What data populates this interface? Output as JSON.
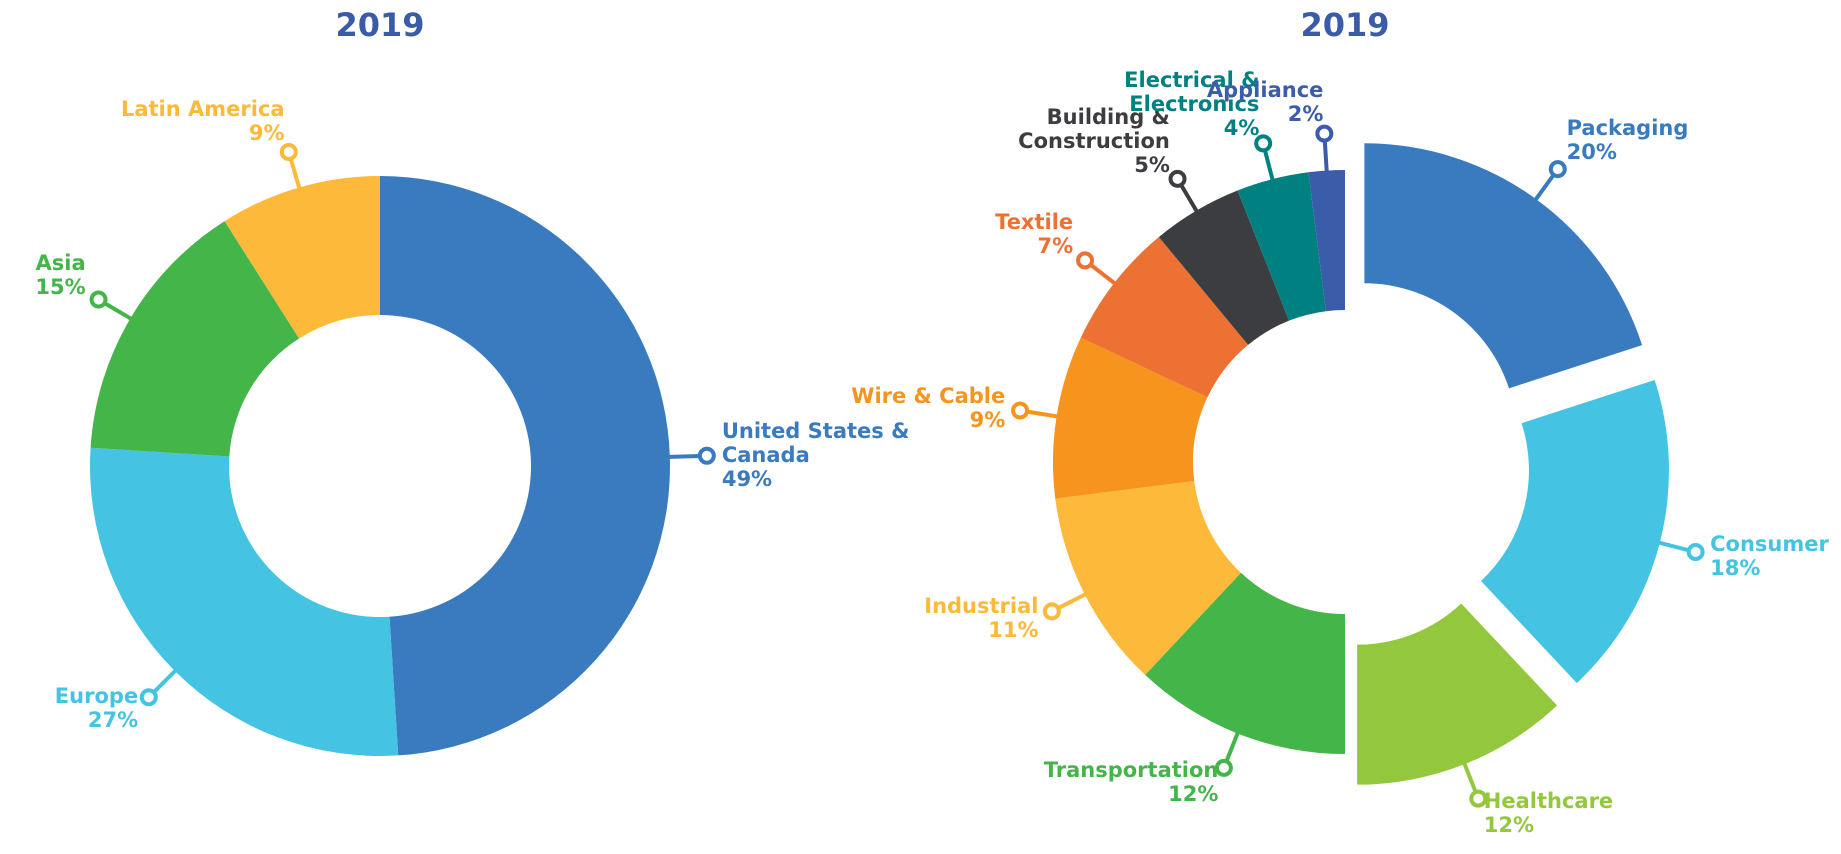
{
  "chart_data": [
    {
      "type": "donut",
      "title": "2019",
      "categories": [
        "United States &\nCanada",
        "Europe",
        "Asia",
        "Latin America"
      ],
      "values": [
        49,
        27,
        15,
        9
      ],
      "value_labels": [
        "49%",
        "27%",
        "15%",
        "9%"
      ],
      "colors": [
        "#3a7bbf",
        "#45c3e3",
        "#44b649",
        "#fdb93a"
      ],
      "exploded": [
        false,
        false,
        false,
        false
      ]
    },
    {
      "type": "donut",
      "title": "2019",
      "categories": [
        "Packaging",
        "Consumer",
        "Healthcare",
        "Transportation",
        "Industrial",
        "Wire & Cable",
        "Textile",
        "Building &\nConstruction",
        "Electrical &\nElectronics",
        "Appliance"
      ],
      "values": [
        20,
        18,
        12,
        12,
        11,
        9,
        7,
        5,
        4,
        2
      ],
      "value_labels": [
        "20%",
        "18%",
        "12%",
        "12%",
        "11%",
        "9%",
        "7%",
        "5%",
        "4%",
        "2%"
      ],
      "colors": [
        "#3a7bbf",
        "#45c3e3",
        "#93c83e",
        "#44b649",
        "#fdb93a",
        "#f7941e",
        "#ec7132",
        "#3c3d40",
        "#008080",
        "#3b5ca8"
      ],
      "exploded": [
        true,
        true,
        true,
        false,
        false,
        false,
        false,
        false,
        false,
        false
      ]
    }
  ]
}
